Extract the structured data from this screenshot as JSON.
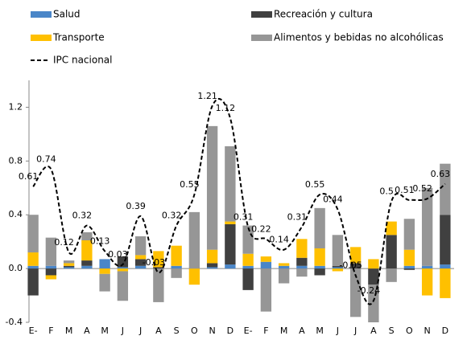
{
  "chart_data": {
    "type": "bar",
    "categories": [
      "E-",
      "F",
      "M",
      "A",
      "M",
      "J",
      "J",
      "A",
      "S",
      "O",
      "N",
      "D",
      "E-",
      "F",
      "M",
      "A",
      "M",
      "J",
      "J",
      "A",
      "S",
      "O",
      "N",
      "D"
    ],
    "series": [
      {
        "name": "Salud",
        "color": "#4a86c8",
        "values": [
          0.02,
          0.02,
          0.01,
          0.02,
          0.07,
          0.01,
          0.02,
          0.0,
          0.02,
          0.0,
          0.01,
          0.03,
          0.02,
          0.05,
          0.02,
          0.02,
          0.02,
          0.01,
          0.0,
          0.0,
          0.0,
          0.02,
          0.02,
          0.03
        ]
      },
      {
        "name": "Recreación y cultura",
        "color": "#404040",
        "values": [
          -0.2,
          -0.05,
          0.01,
          0.04,
          0.0,
          0.08,
          0.05,
          0.01,
          0.0,
          0.0,
          0.03,
          0.3,
          -0.16,
          0.0,
          0.0,
          0.06,
          -0.05,
          0.01,
          0.04,
          -0.12,
          0.25,
          -0.01,
          0.0,
          0.37
        ]
      },
      {
        "name": "Transporte",
        "color": "#ffc000",
        "values": [
          0.1,
          -0.03,
          0.02,
          0.15,
          -0.04,
          -0.02,
          0.03,
          0.12,
          0.15,
          -0.12,
          0.1,
          0.02,
          0.09,
          0.04,
          0.02,
          0.14,
          0.13,
          -0.02,
          0.12,
          0.07,
          0.1,
          0.12,
          -0.2,
          -0.22
        ]
      },
      {
        "name": "Alimentos y bebidas no alcohólicas",
        "color": "#969696",
        "values": [
          0.28,
          0.21,
          0.02,
          0.06,
          -0.13,
          -0.22,
          0.14,
          -0.25,
          -0.07,
          0.42,
          0.92,
          0.56,
          0.21,
          -0.32,
          -0.11,
          -0.06,
          0.3,
          0.23,
          -0.36,
          -0.28,
          -0.1,
          0.23,
          0.58,
          0.38
        ]
      },
      {
        "name": "IPC nacional",
        "type": "line",
        "color": "#000000",
        "values": [
          0.61,
          0.74,
          0.12,
          0.32,
          0.13,
          0.03,
          0.39,
          -0.03,
          0.32,
          0.55,
          1.21,
          1.12,
          0.31,
          0.22,
          0.14,
          0.31,
          0.55,
          0.44,
          -0.05,
          -0.24,
          0.5,
          0.51,
          0.52,
          0.63
        ]
      }
    ],
    "ylim": [
      -0.4,
      1.4
    ],
    "yticks": [
      -0.4,
      {
        "value": 0,
        "label": "0.0"
      },
      0.4,
      0.8,
      1.2
    ]
  }
}
